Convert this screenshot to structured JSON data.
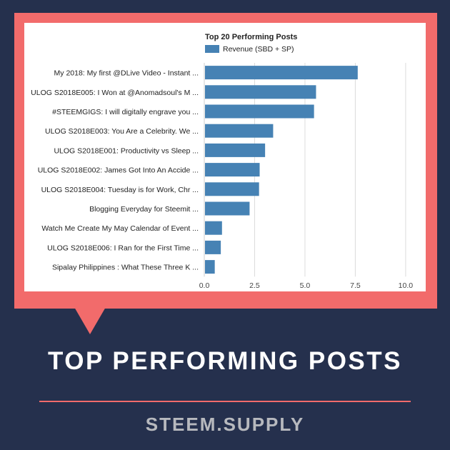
{
  "chart_data": {
    "type": "bar",
    "orientation": "horizontal",
    "title": "Top 20 Performing Posts",
    "legend_position": "top",
    "series": [
      {
        "name": "Revenue (SBD + SP)",
        "color": "#4682b4",
        "values": [
          7.62,
          5.55,
          5.45,
          3.42,
          3.02,
          2.75,
          2.72,
          2.25,
          0.88,
          0.82,
          0.52
        ]
      }
    ],
    "categories": [
      "My 2018: My first @DLive Video - Instant ...",
      "ULOG S2018E005: I Won at @Anomadsoul's M ...",
      "#STEEMGIGS: I will digitally engrave you ...",
      "ULOG S2018E003: You Are a Celebrity. We ...",
      "ULOG S2018E001: Productivity vs Sleep ...",
      "ULOG S2018E002: James Got Into An Accide ...",
      "ULOG S2018E004: Tuesday is for Work, Chr ...",
      "Blogging Everyday for Steemit ...",
      "Watch Me Create My May Calendar of Event ...",
      "ULOG S2018E006: I Ran for the First Time ...",
      "Sipalay Philippines : What These Three K ..."
    ],
    "xlim": [
      0,
      10.5
    ],
    "xticks": [
      "0.0",
      "2.5",
      "5.0",
      "7.5",
      "10.0"
    ],
    "xtick_values": [
      0,
      2.5,
      5,
      7.5,
      10
    ],
    "grid": true
  },
  "banner": {
    "title": "TOP PERFORMING POSTS",
    "brand": "STEEM.SUPPLY"
  },
  "colors": {
    "background": "#25304d",
    "accent": "#f26b6b",
    "bar": "#4682b4"
  }
}
